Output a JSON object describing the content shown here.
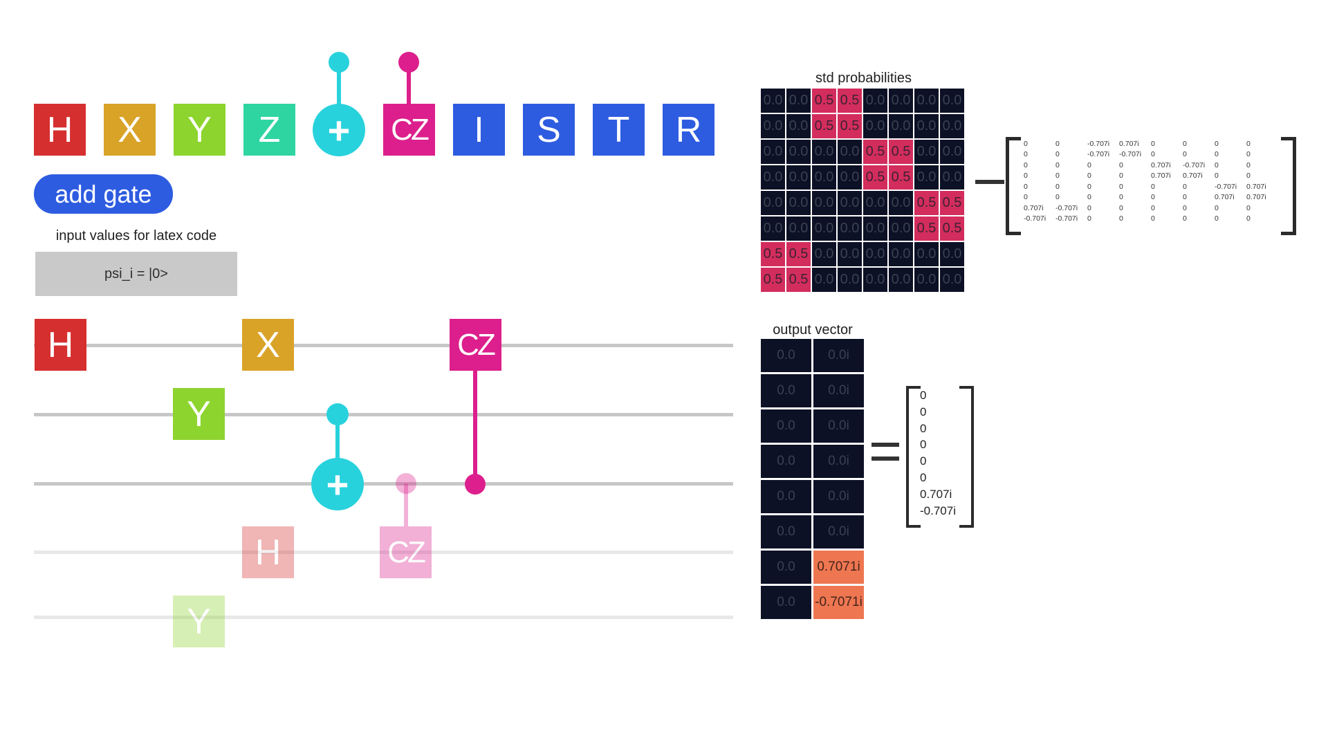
{
  "palette": {
    "gates": [
      {
        "label": "H",
        "color": "#d62f2f"
      },
      {
        "label": "X",
        "color": "#d9a328"
      },
      {
        "label": "Y",
        "color": "#8dd42e"
      },
      {
        "label": "Z",
        "color": "#2fd5a1"
      },
      {
        "label": "+",
        "color": "#28d2dc"
      },
      {
        "label": "CZ",
        "color": "#dc1f8c"
      },
      {
        "label": "I",
        "color": "#2e5ce0"
      },
      {
        "label": "S",
        "color": "#2e5ce0"
      },
      {
        "label": "T",
        "color": "#2e5ce0"
      },
      {
        "label": "R",
        "color": "#2e5ce0"
      }
    ],
    "add_gate_label": "add gate"
  },
  "latex_input": {
    "label": "input values for latex code",
    "value": "psi_i = |0>"
  },
  "circuit": {
    "gates": [
      {
        "label": "H",
        "state": "active"
      },
      {
        "label": "X",
        "state": "active"
      },
      {
        "label": "CZ",
        "state": "active"
      },
      {
        "label": "Y",
        "state": "active"
      },
      {
        "label": "+",
        "state": "active"
      },
      {
        "label": "H",
        "state": "faded"
      },
      {
        "label": "CZ",
        "state": "faded"
      },
      {
        "label": "Y",
        "state": "faded"
      }
    ]
  },
  "std_probabilities": {
    "title": "std probabilities",
    "rows": [
      [
        "0.0",
        "0.0",
        "0.5",
        "0.5",
        "0.0",
        "0.0",
        "0.0",
        "0.0"
      ],
      [
        "0.0",
        "0.0",
        "0.5",
        "0.5",
        "0.0",
        "0.0",
        "0.0",
        "0.0"
      ],
      [
        "0.0",
        "0.0",
        "0.0",
        "0.0",
        "0.5",
        "0.5",
        "0.0",
        "0.0"
      ],
      [
        "0.0",
        "0.0",
        "0.0",
        "0.0",
        "0.5",
        "0.5",
        "0.0",
        "0.0"
      ],
      [
        "0.0",
        "0.0",
        "0.0",
        "0.0",
        "0.0",
        "0.0",
        "0.5",
        "0.5"
      ],
      [
        "0.0",
        "0.0",
        "0.0",
        "0.0",
        "0.0",
        "0.0",
        "0.5",
        "0.5"
      ],
      [
        "0.5",
        "0.5",
        "0.0",
        "0.0",
        "0.0",
        "0.0",
        "0.0",
        "0.0"
      ],
      [
        "0.5",
        "0.5",
        "0.0",
        "0.0",
        "0.0",
        "0.0",
        "0.0",
        "0.0"
      ]
    ],
    "highlight_value": "0.5"
  },
  "unitary_matrix": {
    "rows": [
      [
        "0",
        "0",
        "-0.707i",
        "0.707i",
        "0",
        "0",
        "0",
        "0"
      ],
      [
        "0",
        "0",
        "-0.707i",
        "-0.707i",
        "0",
        "0",
        "0",
        "0"
      ],
      [
        "0",
        "0",
        "0",
        "0",
        "0.707i",
        "-0.707i",
        "0",
        "0"
      ],
      [
        "0",
        "0",
        "0",
        "0",
        "0.707i",
        "0.707i",
        "0",
        "0"
      ],
      [
        "0",
        "0",
        "0",
        "0",
        "0",
        "0",
        "-0.707i",
        "0.707i"
      ],
      [
        "0",
        "0",
        "0",
        "0",
        "0",
        "0",
        "0.707i",
        "0.707i"
      ],
      [
        "0.707i",
        "-0.707i",
        "0",
        "0",
        "0",
        "0",
        "0",
        "0"
      ],
      [
        "-0.707i",
        "-0.707i",
        "0",
        "0",
        "0",
        "0",
        "0",
        "0"
      ]
    ]
  },
  "output_vector": {
    "title": "output vector",
    "rows": [
      [
        "0.0",
        "0.0i"
      ],
      [
        "0.0",
        "0.0i"
      ],
      [
        "0.0",
        "0.0i"
      ],
      [
        "0.0",
        "0.0i"
      ],
      [
        "0.0",
        "0.0i"
      ],
      [
        "0.0",
        "0.0i"
      ],
      [
        "0.0",
        "0.7071i"
      ],
      [
        "0.0",
        "-0.7071i"
      ]
    ],
    "highlight_rows": [
      6,
      7
    ]
  },
  "result_vector": {
    "values": [
      "0",
      "0",
      "0",
      "0",
      "0",
      "0",
      "0.707i",
      "-0.707i"
    ]
  },
  "colors": {
    "heatmap_zero": "#0d1126",
    "heatmap_half": "#d22d5d",
    "vector_highlight": "#ee7651",
    "accent_blue": "#2e5ce0"
  }
}
